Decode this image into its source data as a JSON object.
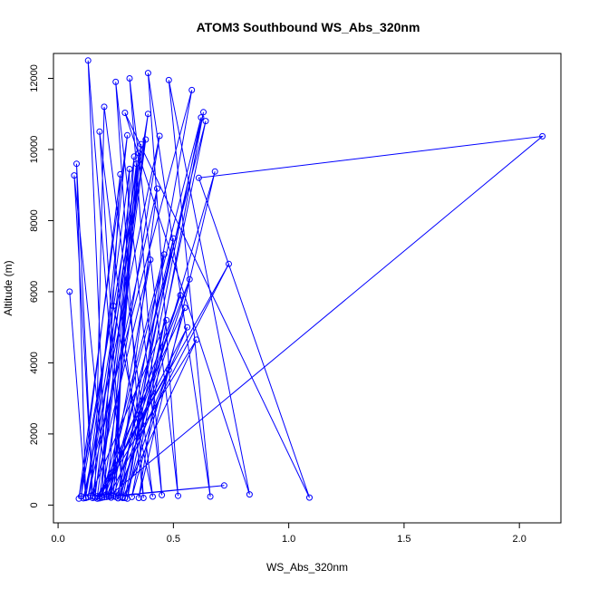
{
  "chart_data": {
    "type": "line",
    "title": "ATOM3 Southbound WS_Abs_320nm",
    "xlabel": "WS_Abs_320nm",
    "ylabel": "Altitude (m)",
    "xlim": [
      -0.02,
      2.18
    ],
    "ylim": [
      -500,
      12700
    ],
    "x_ticks": [
      0.0,
      0.5,
      1.0,
      1.5,
      2.0
    ],
    "x_tick_labels": [
      "0.0",
      "0.5",
      "1.0",
      "1.5",
      "2.0"
    ],
    "y_ticks": [
      0,
      2000,
      4000,
      6000,
      8000,
      10000,
      12000
    ],
    "y_tick_labels": [
      "0",
      "2000",
      "4000",
      "6000",
      "8000",
      "10000",
      "12000"
    ],
    "grid": false,
    "legend": "none",
    "series_color": "#0000ff",
    "marker": "open-circle",
    "series": [
      {
        "x": [
          0.05,
          0.12,
          0.08,
          0.15,
          0.07,
          0.21,
          0.13,
          0.28,
          0.18,
          0.37,
          0.25,
          0.45,
          0.31,
          0.52,
          0.39,
          0.66,
          0.48,
          0.83,
          0.29,
          1.09,
          0.61,
          2.1,
          0.22,
          0.74,
          0.17,
          0.55,
          0.32,
          0.63,
          0.26,
          0.72,
          0.19,
          0.44,
          0.11,
          0.58,
          0.27,
          0.68,
          0.35,
          0.47,
          0.14,
          0.3,
          0.09,
          0.24,
          0.41,
          0.2,
          0.16,
          0.34,
          0.23,
          0.5,
          0.28,
          0.6,
          0.18,
          0.38,
          0.13,
          0.43,
          0.26,
          0.57,
          0.21,
          0.36,
          0.1,
          0.27,
          0.19,
          0.46,
          0.3,
          0.64,
          0.22,
          0.4,
          0.15,
          0.33,
          0.24,
          0.53,
          0.2,
          0.62,
          0.29,
          0.48,
          0.17,
          0.39,
          0.12,
          0.31,
          0.25,
          0.56,
          0.18,
          0.35,
          0.23
        ],
        "y": [
          6000,
          200,
          9600,
          250,
          9270,
          300,
          12500,
          220,
          10500,
          200,
          11900,
          280,
          12000,
          260,
          12150,
          240,
          11950,
          300,
          11030,
          210,
          9200,
          10370,
          250,
          6780,
          180,
          5550,
          230,
          11050,
          270,
          550,
          210,
          10380,
          190,
          11670,
          220,
          9380,
          200,
          5200,
          260,
          10400,
          180,
          5600,
          240,
          11200,
          210,
          9600,
          260,
          7500,
          200,
          4650,
          240,
          10280,
          220,
          8900,
          190,
          6350,
          230,
          10150,
          250,
          9300,
          210,
          7050,
          180,
          10800,
          240,
          6900,
          200,
          9800,
          260,
          5900,
          220,
          10900,
          200,
          3800,
          250,
          11000,
          210,
          9450,
          230,
          5000,
          190,
          9900,
          210
        ]
      }
    ]
  }
}
